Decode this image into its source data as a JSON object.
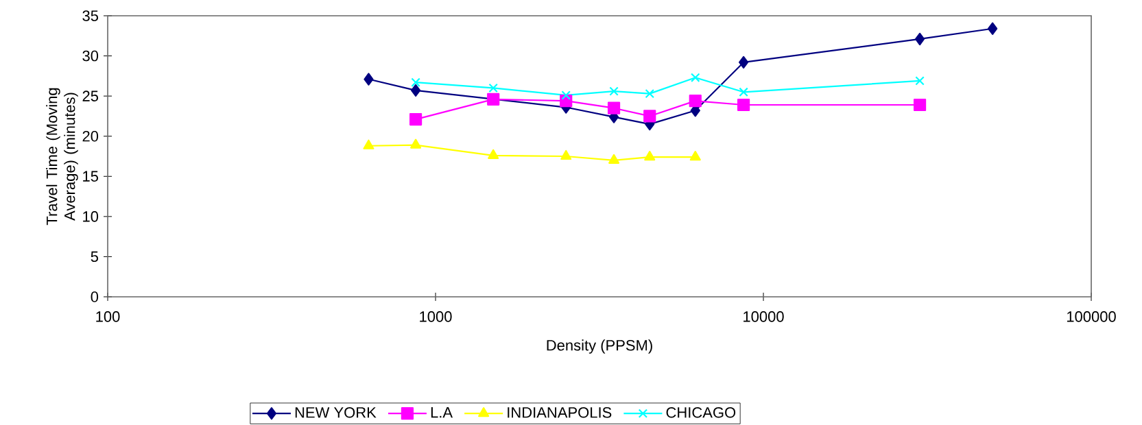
{
  "chart_data": {
    "type": "line",
    "xlabel": "Density (PPSM)",
    "ylabel": "Travel Time (Moving Average) (minutes)",
    "log": "x",
    "xlim": [
      100,
      100000
    ],
    "xticks": [
      100,
      1000,
      10000,
      100000
    ],
    "ylim": [
      0,
      35
    ],
    "yticks": [
      0,
      5,
      10,
      15,
      20,
      25,
      30,
      35
    ],
    "grid": false,
    "legend": "bottom",
    "series": [
      {
        "name": "NEW YORK",
        "color": "#000080",
        "marker": "diamond",
        "x": [
          625,
          870,
          1500,
          2500,
          3500,
          4500,
          6200,
          8700,
          30000,
          50000
        ],
        "values": [
          27.1,
          25.7,
          null,
          23.6,
          22.4,
          21.5,
          23.2,
          29.2,
          32.1,
          33.4
        ]
      },
      {
        "name": "L.A",
        "color": "#ff00ff",
        "marker": "square",
        "x": [
          870,
          1500,
          2500,
          3500,
          4500,
          6200,
          8700,
          30000
        ],
        "values": [
          22.1,
          24.6,
          24.4,
          23.5,
          22.5,
          24.4,
          23.9,
          23.9
        ]
      },
      {
        "name": "INDIANAPOLIS",
        "color": "#ffff00",
        "marker": "triangle",
        "x": [
          625,
          870,
          1500,
          2500,
          3500,
          4500,
          6200
        ],
        "values": [
          18.8,
          18.9,
          17.6,
          17.5,
          17.0,
          17.4,
          17.4
        ]
      },
      {
        "name": "CHICAGO",
        "color": "#00ffff",
        "marker": "cross",
        "x": [
          870,
          1500,
          2500,
          3500,
          4500,
          6200,
          8700,
          30000
        ],
        "values": [
          26.7,
          26.0,
          25.1,
          25.6,
          25.3,
          27.3,
          25.5,
          26.9
        ]
      }
    ]
  }
}
